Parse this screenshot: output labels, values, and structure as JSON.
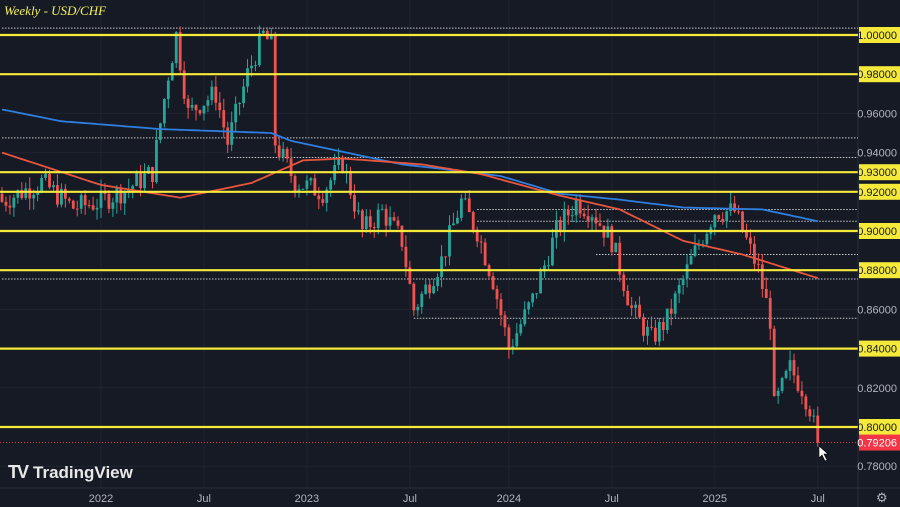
{
  "header": {
    "title": "Weekly - USD/CHF"
  },
  "branding": {
    "logo_text": "TradingView"
  },
  "colors": {
    "background": "#161a25",
    "up": "#26a69a",
    "down": "#ef5350",
    "level": "#f5ea3a",
    "ma_long": "#2f7fe0",
    "ma_short": "#e8553f",
    "last_price": "#f23645"
  },
  "chart_data": {
    "type": "candlestick",
    "title": "Weekly - USD/CHF",
    "xlabel": "",
    "ylabel": "",
    "ylim": [
      0.775,
      1.018
    ],
    "x_ticks": [
      {
        "label": "2022",
        "week": 25
      },
      {
        "label": "Jul",
        "week": 51
      },
      {
        "label": "2023",
        "week": 77
      },
      {
        "label": "Jul",
        "week": 103
      },
      {
        "label": "2024",
        "week": 128
      },
      {
        "label": "Jul",
        "week": 154
      },
      {
        "label": "2025",
        "week": 180
      },
      {
        "label": "Jul",
        "week": 206
      }
    ],
    "y_ticks": [
      "1.00000",
      "0.98000",
      "0.96000",
      "0.94000",
      "0.92000",
      "0.90000",
      "0.88000",
      "0.86000",
      "0.84000",
      "0.82000",
      "0.80000",
      "0.78000"
    ],
    "y_tick_values": [
      1.0,
      0.98,
      0.96,
      0.94,
      0.92,
      0.9,
      0.88,
      0.86,
      0.84,
      0.82,
      0.8,
      0.78
    ],
    "weeks": 207,
    "close_keypoints": [
      [
        0,
        0.915
      ],
      [
        10,
        0.925
      ],
      [
        18,
        0.912
      ],
      [
        25,
        0.915
      ],
      [
        32,
        0.922
      ],
      [
        38,
        0.93
      ],
      [
        42,
        0.98
      ],
      [
        44,
        1.0
      ],
      [
        47,
        0.96
      ],
      [
        50,
        0.965
      ],
      [
        54,
        0.97
      ],
      [
        57,
        0.945
      ],
      [
        62,
        0.98
      ],
      [
        66,
        1.0
      ],
      [
        68,
        0.995
      ],
      [
        69,
        0.945
      ],
      [
        74,
        0.925
      ],
      [
        81,
        0.92
      ],
      [
        86,
        0.935
      ],
      [
        91,
        0.9
      ],
      [
        96,
        0.91
      ],
      [
        101,
        0.895
      ],
      [
        104,
        0.86
      ],
      [
        111,
        0.885
      ],
      [
        116,
        0.915
      ],
      [
        120,
        0.9
      ],
      [
        124,
        0.875
      ],
      [
        128,
        0.84
      ],
      [
        134,
        0.865
      ],
      [
        140,
        0.9
      ],
      [
        145,
        0.915
      ],
      [
        149,
        0.91
      ],
      [
        154,
        0.895
      ],
      [
        159,
        0.86
      ],
      [
        164,
        0.845
      ],
      [
        168,
        0.855
      ],
      [
        174,
        0.885
      ],
      [
        180,
        0.91
      ],
      [
        185,
        0.91
      ],
      [
        189,
        0.89
      ],
      [
        191,
        0.88
      ],
      [
        194,
        0.855
      ],
      [
        195,
        0.81
      ],
      [
        199,
        0.83
      ],
      [
        202,
        0.82
      ],
      [
        204,
        0.81
      ],
      [
        206,
        0.792
      ]
    ],
    "ma_long_keypoints": [
      [
        0,
        0.962
      ],
      [
        15,
        0.956
      ],
      [
        40,
        0.952
      ],
      [
        68,
        0.95
      ],
      [
        73,
        0.946
      ],
      [
        101,
        0.934
      ],
      [
        114,
        0.931
      ],
      [
        126,
        0.928
      ],
      [
        141,
        0.919
      ],
      [
        156,
        0.916
      ],
      [
        172,
        0.912
      ],
      [
        192,
        0.911
      ],
      [
        206,
        0.905
      ]
    ],
    "ma_short_keypoints": [
      [
        0,
        0.94
      ],
      [
        25,
        0.9235
      ],
      [
        45,
        0.917
      ],
      [
        63,
        0.9245
      ],
      [
        76,
        0.936
      ],
      [
        86,
        0.937
      ],
      [
        106,
        0.934
      ],
      [
        121,
        0.929
      ],
      [
        141,
        0.918
      ],
      [
        156,
        0.911
      ],
      [
        172,
        0.895
      ],
      [
        187,
        0.888
      ],
      [
        206,
        0.876
      ]
    ],
    "levels": [
      1.0,
      0.98,
      0.93,
      0.92,
      0.9,
      0.88,
      0.84,
      0.8
    ],
    "level_labels": [
      "1.00000",
      "0.98000",
      "0.93000",
      "0.92000",
      "0.90000",
      "0.88000",
      "0.84000",
      "0.80000"
    ],
    "dotted_levels": [
      [
        1.0035,
        0
      ],
      [
        0.9475,
        0
      ],
      [
        0.9375,
        57
      ],
      [
        0.911,
        120
      ],
      [
        0.905,
        120
      ],
      [
        0.888,
        150
      ],
      [
        0.8755,
        0
      ],
      [
        0.8555,
        104
      ]
    ],
    "last_price": 0.79206,
    "last_price_label": "0.79206"
  }
}
